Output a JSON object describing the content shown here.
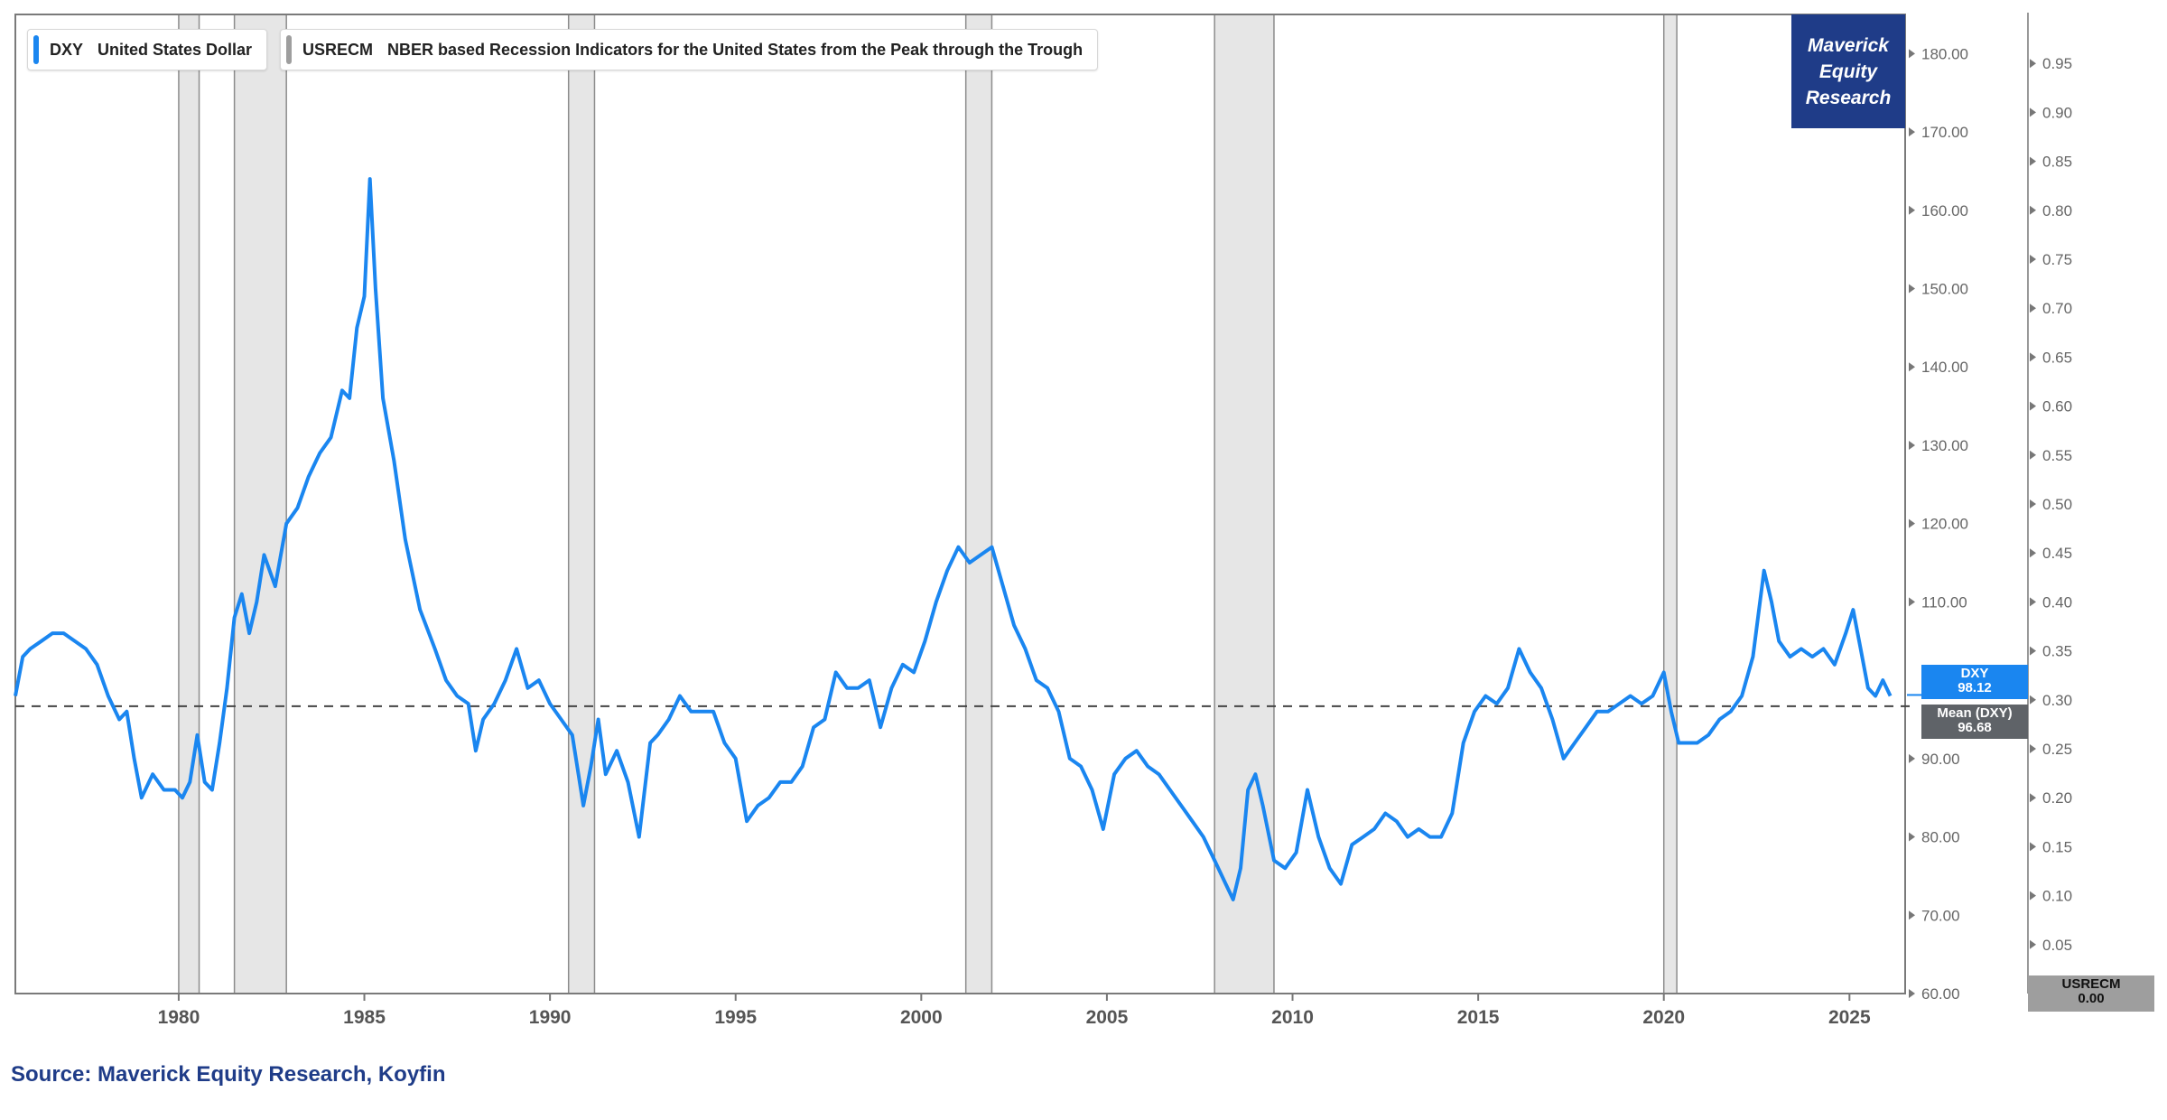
{
  "legend": {
    "dxy": {
      "ticker": "DXY",
      "name": "United States Dollar",
      "color": "#1a86f0"
    },
    "usrecm": {
      "ticker": "USRECM",
      "name": "NBER based Recession Indicators for the United States from the Peak through the Trough",
      "color": "#9e9e9e"
    }
  },
  "brand": {
    "line1": "Maverick",
    "line2": "Equity",
    "line3": "Research"
  },
  "source": "Source: Maverick Equity Research, Koyfin",
  "tags": {
    "dxy": {
      "label": "DXY",
      "value": "98.12"
    },
    "mean": {
      "label": "Mean (DXY)",
      "value": "96.68"
    },
    "usrecm": {
      "label": "USRECM",
      "value": "0.00"
    }
  },
  "chart_data": {
    "type": "line",
    "title": "",
    "xlabel": "",
    "ylabel": "",
    "x_ticks": [
      "1980",
      "1985",
      "1990",
      "1995",
      "2000",
      "2005",
      "2010",
      "2015",
      "2020",
      "2025"
    ],
    "xlim": [
      1975.6,
      2026.5
    ],
    "y_ticks": [
      "60.00",
      "70.00",
      "80.00",
      "90.00",
      "110.00",
      "120.00",
      "130.00",
      "140.00",
      "150.00",
      "160.00",
      "170.00",
      "180.00"
    ],
    "ylim": [
      60,
      185
    ],
    "y2_ticks": [
      "0.05",
      "0.10",
      "0.15",
      "0.20",
      "0.25",
      "0.30",
      "0.35",
      "0.40",
      "0.45",
      "0.50",
      "0.55",
      "0.60",
      "0.65",
      "0.70",
      "0.75",
      "0.80",
      "0.85",
      "0.90",
      "0.95"
    ],
    "y2lim": [
      0,
      1
    ],
    "mean_value": 96.68,
    "last_value": 98.12,
    "recessions": [
      {
        "start": 1980.0,
        "end": 1980.55
      },
      {
        "start": 1981.5,
        "end": 1982.9
      },
      {
        "start": 1990.5,
        "end": 1991.2
      },
      {
        "start": 2001.2,
        "end": 2001.9
      },
      {
        "start": 2007.9,
        "end": 2009.5
      },
      {
        "start": 2020.0,
        "end": 2020.35
      }
    ],
    "series": [
      {
        "name": "DXY",
        "x": [
          1975.6,
          1975.8,
          1976.0,
          1976.3,
          1976.6,
          1976.9,
          1977.2,
          1977.5,
          1977.8,
          1978.1,
          1978.4,
          1978.6,
          1978.8,
          1979.0,
          1979.3,
          1979.6,
          1979.9,
          1980.1,
          1980.3,
          1980.5,
          1980.7,
          1980.9,
          1981.1,
          1981.3,
          1981.5,
          1981.7,
          1981.9,
          1982.1,
          1982.3,
          1982.6,
          1982.9,
          1983.2,
          1983.5,
          1983.8,
          1984.1,
          1984.4,
          1984.6,
          1984.8,
          1985.0,
          1985.15,
          1985.3,
          1985.5,
          1985.8,
          1986.1,
          1986.5,
          1986.9,
          1987.2,
          1987.5,
          1987.8,
          1988.0,
          1988.2,
          1988.5,
          1988.8,
          1989.1,
          1989.4,
          1989.7,
          1990.0,
          1990.3,
          1990.6,
          1990.9,
          1991.1,
          1991.3,
          1991.5,
          1991.8,
          1992.1,
          1992.4,
          1992.7,
          1992.9,
          1993.2,
          1993.5,
          1993.8,
          1994.1,
          1994.4,
          1994.7,
          1995.0,
          1995.3,
          1995.6,
          1995.9,
          1996.2,
          1996.5,
          1996.8,
          1997.1,
          1997.4,
          1997.7,
          1998.0,
          1998.3,
          1998.6,
          1998.9,
          1999.2,
          1999.5,
          1999.8,
          2000.1,
          2000.4,
          2000.7,
          2001.0,
          2001.3,
          2001.6,
          2001.9,
          2002.2,
          2002.5,
          2002.8,
          2003.1,
          2003.4,
          2003.7,
          2004.0,
          2004.3,
          2004.6,
          2004.9,
          2005.2,
          2005.5,
          2005.8,
          2006.1,
          2006.4,
          2006.7,
          2007.0,
          2007.3,
          2007.6,
          2007.9,
          2008.2,
          2008.4,
          2008.6,
          2008.8,
          2009.0,
          2009.2,
          2009.5,
          2009.8,
          2010.1,
          2010.4,
          2010.7,
          2011.0,
          2011.3,
          2011.6,
          2011.9,
          2012.2,
          2012.5,
          2012.8,
          2013.1,
          2013.4,
          2013.7,
          2014.0,
          2014.3,
          2014.6,
          2014.9,
          2015.2,
          2015.5,
          2015.8,
          2016.1,
          2016.4,
          2016.7,
          2017.0,
          2017.3,
          2017.6,
          2017.9,
          2018.2,
          2018.5,
          2018.8,
          2019.1,
          2019.4,
          2019.7,
          2020.0,
          2020.2,
          2020.4,
          2020.6,
          2020.9,
          2021.2,
          2021.5,
          2021.8,
          2022.1,
          2022.4,
          2022.7,
          2022.9,
          2023.1,
          2023.4,
          2023.7,
          2024.0,
          2024.3,
          2024.6,
          2024.9,
          2025.1,
          2025.3,
          2025.5,
          2025.7,
          2025.9,
          2026.1
        ],
        "values": [
          98,
          103,
          104,
          105,
          106,
          106,
          105,
          104,
          102,
          98,
          95,
          96,
          90,
          85,
          88,
          86,
          86,
          85,
          87,
          93,
          87,
          86,
          92,
          99,
          108,
          111,
          106,
          110,
          116,
          112,
          120,
          122,
          126,
          129,
          131,
          137,
          136,
          145,
          149,
          164,
          150,
          136,
          128,
          118,
          109,
          104,
          100,
          98,
          97,
          91,
          95,
          97,
          100,
          104,
          99,
          100,
          97,
          95,
          93,
          84,
          89,
          95,
          88,
          91,
          87,
          80,
          92,
          93,
          95,
          98,
          96,
          96,
          96,
          92,
          90,
          82,
          84,
          85,
          87,
          87,
          89,
          94,
          95,
          101,
          99,
          99,
          100,
          94,
          99,
          102,
          101,
          105,
          110,
          114,
          117,
          115,
          116,
          117,
          112,
          107,
          104,
          100,
          99,
          96,
          90,
          89,
          86,
          81,
          88,
          90,
          91,
          89,
          88,
          86,
          84,
          82,
          80,
          77,
          74,
          72,
          76,
          86,
          88,
          84,
          77,
          76,
          78,
          86,
          80,
          76,
          74,
          79,
          80,
          81,
          83,
          82,
          80,
          81,
          80,
          80,
          83,
          92,
          96,
          98,
          97,
          99,
          104,
          101,
          99,
          95,
          90,
          92,
          94,
          96,
          96,
          97,
          98,
          97,
          98,
          101,
          96,
          92,
          92,
          92,
          93,
          95,
          96,
          98,
          103,
          114,
          110,
          105,
          103,
          104,
          103,
          104,
          102,
          106,
          109,
          104,
          99,
          98,
          100,
          98
        ]
      },
      {
        "name": "USRECM",
        "values_note": "recession shading 0/1",
        "latest": 0
      }
    ]
  }
}
